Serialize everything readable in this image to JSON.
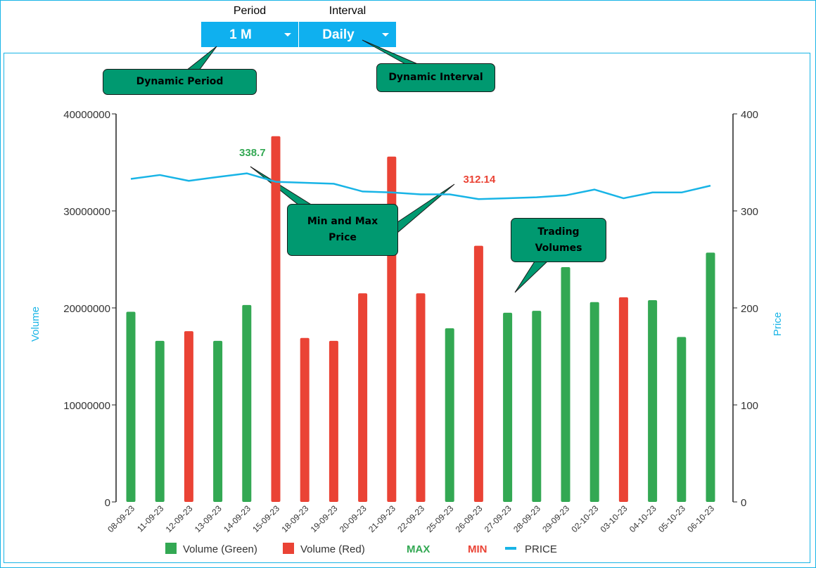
{
  "controls": {
    "period_label": "Period",
    "period_value": "1 M",
    "interval_label": "Interval",
    "interval_value": "Daily"
  },
  "callouts": {
    "dynamic_period": "Dynamic Period",
    "dynamic_interval": "Dynamic Interval",
    "min_max_line1": "Min and Max",
    "min_max_line2": "Price",
    "trading_line1": "Trading",
    "trading_line2": "Volumes"
  },
  "colors": {
    "accent": "#0fb0ef",
    "green": "#33a853",
    "red": "#ea4335",
    "price_line": "#18b4e6",
    "callout": "#009970"
  },
  "chart_data": {
    "type": "bar",
    "categories": [
      "08-09-23",
      "11-09-23",
      "12-09-23",
      "13-09-23",
      "14-09-23",
      "15-09-23",
      "18-09-23",
      "19-09-23",
      "20-09-23",
      "21-09-23",
      "22-09-23",
      "25-09-23",
      "26-09-23",
      "27-09-23",
      "28-09-23",
      "29-09-23",
      "02-10-23",
      "03-10-23",
      "04-10-23",
      "05-10-23",
      "06-10-23"
    ],
    "series": [
      {
        "name": "Volume (Green)",
        "axis": "left",
        "color": "#33a853",
        "values": [
          19600000,
          16600000,
          null,
          16600000,
          20300000,
          null,
          null,
          null,
          null,
          null,
          null,
          17900000,
          null,
          19500000,
          19700000,
          24200000,
          20600000,
          null,
          20800000,
          17000000,
          25700000
        ]
      },
      {
        "name": "Volume (Red)",
        "axis": "left",
        "color": "#ea4335",
        "values": [
          null,
          null,
          17600000,
          null,
          null,
          37700000,
          16900000,
          16600000,
          21500000,
          35600000,
          21500000,
          null,
          26400000,
          null,
          null,
          null,
          null,
          21100000,
          null,
          null,
          null
        ]
      },
      {
        "name": "PRICE",
        "axis": "right",
        "type": "line",
        "color": "#18b4e6",
        "values": [
          333,
          337,
          331,
          335,
          338.7,
          330,
          329,
          328,
          320,
          319,
          317,
          317,
          312.14,
          313,
          314,
          316,
          322,
          313,
          319,
          319,
          326
        ]
      }
    ],
    "annotations": [
      {
        "label": "338.7",
        "category": "14-09-23",
        "kind": "MAX",
        "color": "#33a853"
      },
      {
        "label": "312.14",
        "category": "26-09-23",
        "kind": "MIN",
        "color": "#ea4335"
      }
    ],
    "legend": [
      {
        "label": "Volume (Green)",
        "kind": "square",
        "color": "#33a853"
      },
      {
        "label": "Volume (Red)",
        "kind": "square",
        "color": "#ea4335"
      },
      {
        "label": "MAX",
        "kind": "text",
        "color": "#33a853"
      },
      {
        "label": "MIN",
        "kind": "text",
        "color": "#ea4335"
      },
      {
        "label": "PRICE",
        "kind": "line",
        "color": "#18b4e6"
      }
    ],
    "legend_position": "bottom",
    "ylabel": "Volume",
    "y2label": "Price",
    "ylim": [
      0,
      40000000
    ],
    "y2lim": [
      0,
      400
    ],
    "yticks": [
      "0",
      "10000000",
      "20000000",
      "30000000",
      "40000000"
    ],
    "y2ticks": [
      "0",
      "100",
      "200",
      "300",
      "400"
    ],
    "grid": false
  }
}
